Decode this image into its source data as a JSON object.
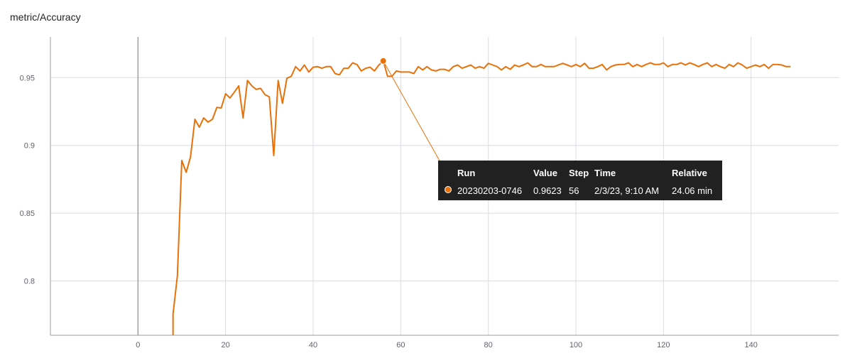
{
  "chart_data": {
    "type": "line",
    "title": "metric/Accuracy",
    "xlabel": "",
    "ylabel": "",
    "xlim": [
      -20,
      160
    ],
    "ylim": [
      0.76,
      0.98
    ],
    "x_ticks": [
      0,
      20,
      40,
      60,
      80,
      100,
      120,
      140
    ],
    "x_tick_labels": [
      "0",
      "20",
      "40",
      "60",
      "80",
      "100",
      "120",
      "140"
    ],
    "y_ticks": [
      0.8,
      0.85,
      0.9,
      0.95
    ],
    "y_tick_labels": [
      "0.8",
      "0.85",
      "0.9",
      "0.95"
    ],
    "grid": true,
    "series": [
      {
        "name": "20230203-0746",
        "color": "#e8710a",
        "x": [
          8,
          9,
          10,
          11,
          12,
          13,
          14,
          15,
          16,
          17,
          18,
          19,
          20,
          21,
          22,
          23,
          24,
          25,
          26,
          27,
          28,
          29,
          30,
          31,
          32,
          33,
          34,
          35,
          36,
          37,
          38,
          39,
          40,
          41,
          42,
          43,
          44,
          45,
          46,
          47,
          48,
          49,
          50,
          51,
          52,
          53,
          54,
          55,
          56,
          57,
          58,
          59,
          60,
          61,
          62,
          63,
          64,
          65,
          66,
          67,
          68,
          69,
          70,
          71,
          72,
          73,
          74,
          75,
          76,
          77,
          78,
          79,
          80,
          81,
          82,
          83,
          84,
          85,
          86,
          87,
          88,
          89,
          90,
          91,
          92,
          93,
          94,
          95,
          96,
          97,
          98,
          99,
          100,
          101,
          102,
          103,
          104,
          105,
          106,
          107,
          108,
          109,
          110,
          111,
          112,
          113,
          114,
          115,
          116,
          117,
          118,
          119,
          120,
          121,
          122,
          123,
          124,
          125,
          126,
          127,
          128,
          129,
          130,
          131,
          132,
          133,
          134,
          135,
          136,
          137,
          138,
          139,
          140,
          141,
          142,
          143,
          144,
          145,
          146,
          147,
          148,
          149
        ],
        "y": [
          0.7757,
          0.8039,
          0.8889,
          0.8801,
          0.8916,
          0.9193,
          0.9134,
          0.9203,
          0.9172,
          0.9193,
          0.928,
          0.9276,
          0.9381,
          0.935,
          0.9393,
          0.9439,
          0.9203,
          0.9479,
          0.9439,
          0.9413,
          0.9421,
          0.9374,
          0.9358,
          0.8925,
          0.9479,
          0.931,
          0.9495,
          0.951,
          0.9581,
          0.9549,
          0.9593,
          0.9541,
          0.9577,
          0.9581,
          0.9569,
          0.9581,
          0.9581,
          0.953,
          0.9521,
          0.9569,
          0.9569,
          0.9609,
          0.9597,
          0.9549,
          0.9569,
          0.9577,
          0.9549,
          0.9593,
          0.9623,
          0.951,
          0.951,
          0.9549,
          0.9541,
          0.9541,
          0.9541,
          0.953,
          0.9581,
          0.9557,
          0.9581,
          0.9557,
          0.9549,
          0.9561,
          0.9561,
          0.9549,
          0.9581,
          0.9593,
          0.9569,
          0.9581,
          0.9593,
          0.9569,
          0.9581,
          0.9569,
          0.9605,
          0.9593,
          0.9581,
          0.9557,
          0.9581,
          0.9561,
          0.9593,
          0.9581,
          0.9593,
          0.9609,
          0.9581,
          0.9581,
          0.9597,
          0.9581,
          0.9581,
          0.9581,
          0.9593,
          0.9605,
          0.9593,
          0.9581,
          0.9597,
          0.9581,
          0.9605,
          0.9569,
          0.9569,
          0.9581,
          0.9597,
          0.9557,
          0.9581,
          0.9593,
          0.9597,
          0.9597,
          0.9609,
          0.9581,
          0.9597,
          0.9581,
          0.9597,
          0.9609,
          0.9597,
          0.9597,
          0.9609,
          0.9581,
          0.9597,
          0.9597,
          0.9609,
          0.9593,
          0.9609,
          0.9597,
          0.9581,
          0.9597,
          0.9609,
          0.9581,
          0.9597,
          0.9581,
          0.9569,
          0.9597,
          0.9581,
          0.9609,
          0.9593,
          0.9569,
          0.9581,
          0.9593,
          0.9581,
          0.9597,
          0.9569,
          0.9597,
          0.9597,
          0.9593,
          0.9581,
          0.9581
        ]
      }
    ],
    "highlight": {
      "x": 56,
      "y": 0.9623
    }
  },
  "tooltip": {
    "headers": {
      "run": "Run",
      "value": "Value",
      "step": "Step",
      "time": "Time",
      "relative": "Relative"
    },
    "row": {
      "run": "20230203-0746",
      "value": "0.9623",
      "step": "56",
      "time": "2/3/23, 9:10 AM",
      "relative": "24.06 min"
    }
  }
}
